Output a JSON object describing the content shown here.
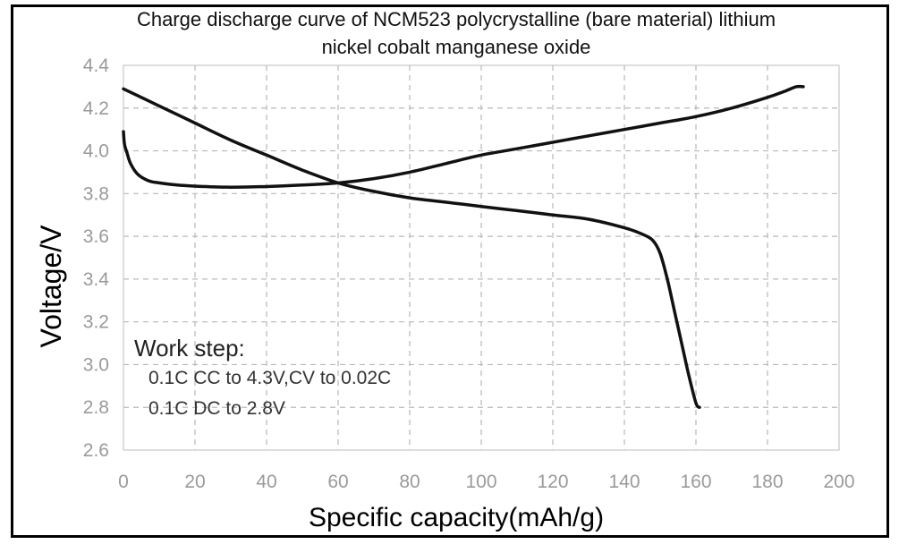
{
  "chart_data": {
    "type": "line",
    "title_lines": [
      "Charge discharge curve of NCM523 polycrystalline (bare material) lithium",
      "nickel cobalt manganese oxide"
    ],
    "xlabel": "Specific capacity(mAh/g)",
    "ylabel": "Voltage/V",
    "xlim": [
      0,
      200
    ],
    "ylim": [
      2.6,
      4.4
    ],
    "xticks": [
      0,
      20,
      40,
      60,
      80,
      100,
      120,
      140,
      160,
      180,
      200
    ],
    "yticks": [
      2.6,
      2.8,
      3.0,
      3.2,
      3.4,
      3.6,
      3.8,
      4.0,
      4.2,
      4.4
    ],
    "grid": true,
    "annotation": {
      "heading": "Work step:",
      "lines": [
        "0.1C CC to 4.3V,CV to 0.02C",
        "0.1C DC to 2.8V"
      ]
    },
    "series": [
      {
        "x": [
          0,
          0.3,
          1,
          2,
          4,
          7,
          10,
          15,
          20,
          30,
          40,
          50,
          60,
          70,
          80,
          90,
          100,
          110,
          120,
          130,
          140,
          150,
          160,
          170,
          180,
          185,
          188,
          190
        ],
        "y": [
          4.09,
          4.03,
          3.99,
          3.94,
          3.89,
          3.86,
          3.85,
          3.84,
          3.835,
          3.83,
          3.833,
          3.84,
          3.85,
          3.87,
          3.9,
          3.94,
          3.98,
          4.01,
          4.04,
          4.07,
          4.1,
          4.13,
          4.16,
          4.2,
          4.25,
          4.28,
          4.3,
          4.3
        ]
      },
      {
        "x": [
          0,
          10,
          20,
          30,
          40,
          50,
          60,
          70,
          80,
          90,
          100,
          110,
          120,
          130,
          140,
          145,
          148,
          150,
          152,
          154,
          156,
          158,
          160,
          161
        ],
        "y": [
          4.29,
          4.21,
          4.13,
          4.05,
          3.98,
          3.91,
          3.85,
          3.81,
          3.78,
          3.76,
          3.74,
          3.72,
          3.7,
          3.68,
          3.64,
          3.61,
          3.58,
          3.52,
          3.4,
          3.25,
          3.1,
          2.95,
          2.82,
          2.8
        ]
      }
    ]
  }
}
